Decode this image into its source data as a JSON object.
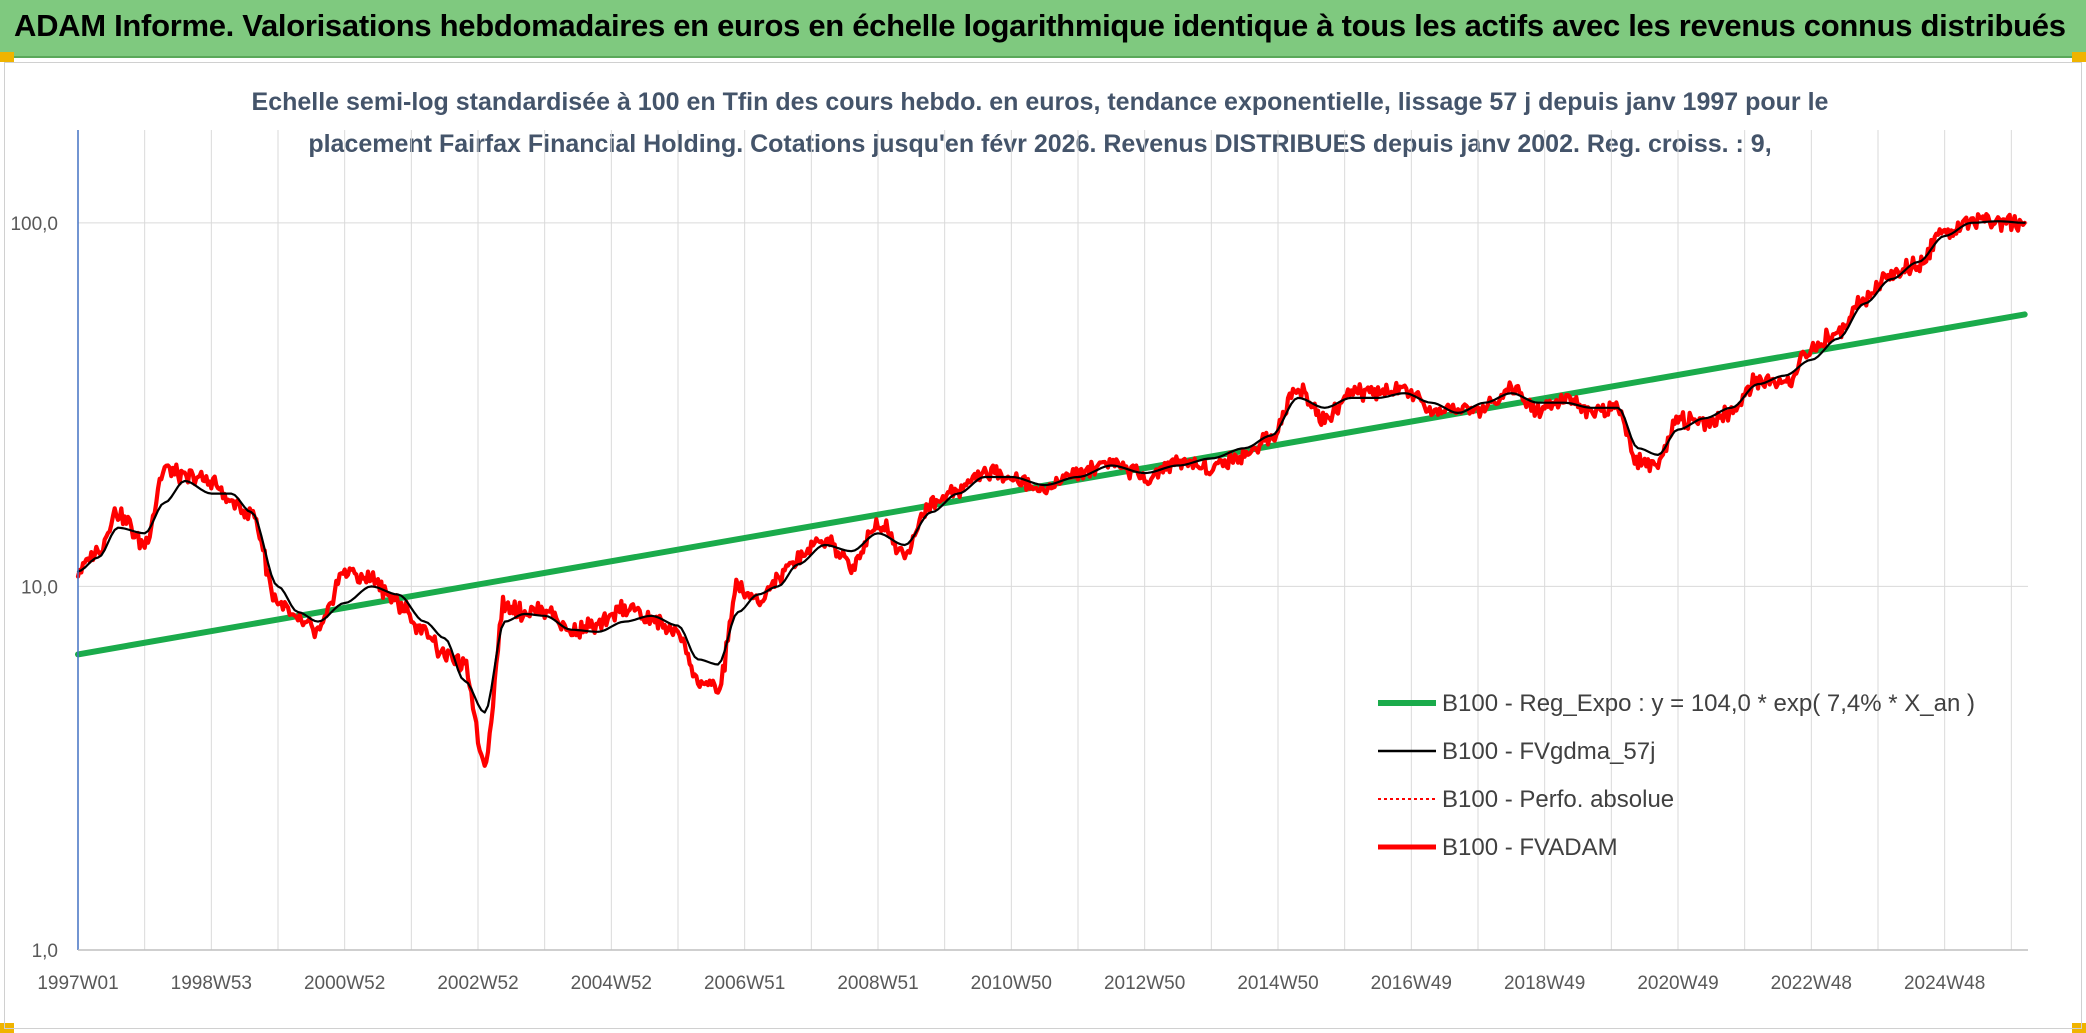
{
  "header": {
    "title": "ADAM Informe. Valorisations hebdomadaires en euros en échelle logarithmique identique à tous les actifs avec les revenus connus distribués"
  },
  "chart_data": {
    "type": "line",
    "title_line1": "Echelle semi-log standardisée à 100 en Tfin des cours hebdo. en euros, tendance exponentielle, lissage 57 j depuis janv 1997 pour le",
    "title_line2": "placement Fairfax Financial Holding. Cotations jusqu'en févr 2026. Revenus DISTRIBUES depuis janv 2002. Reg. croiss. : 9,",
    "y_scale": "log",
    "ylim": [
      1,
      180
    ],
    "xlim": [
      1997.0,
      2026.25
    ],
    "grid": true,
    "legend_position": "bottom-right",
    "y_ticks": [
      {
        "value": 1,
        "label": "1,0"
      },
      {
        "value": 10,
        "label": "10,0"
      },
      {
        "value": 100,
        "label": "100,0"
      }
    ],
    "x_ticks": [
      {
        "value": 1997.0,
        "label": "1997W01"
      },
      {
        "value": 1999.0,
        "label": "1998W53"
      },
      {
        "value": 2001.0,
        "label": "2000W52"
      },
      {
        "value": 2003.0,
        "label": "2002W52"
      },
      {
        "value": 2005.0,
        "label": "2004W52"
      },
      {
        "value": 2007.0,
        "label": "2006W51"
      },
      {
        "value": 2009.0,
        "label": "2008W51"
      },
      {
        "value": 2011.0,
        "label": "2010W50"
      },
      {
        "value": 2013.0,
        "label": "2012W50"
      },
      {
        "value": 2015.0,
        "label": "2014W50"
      },
      {
        "value": 2017.0,
        "label": "2016W49"
      },
      {
        "value": 2019.0,
        "label": "2018W49"
      },
      {
        "value": 2021.0,
        "label": "2020W49"
      },
      {
        "value": 2023.0,
        "label": "2022W48"
      },
      {
        "value": 2025.0,
        "label": "2024W48"
      }
    ],
    "series": [
      {
        "name": "B100 - Reg_Expo : y = 104,0 * exp( 7,4% *  X_an )",
        "color": "#1aab4b",
        "style": "solid-thick",
        "x": [
          1997.0,
          2026.2
        ],
        "y": [
          6.5,
          56
        ]
      },
      {
        "name": "B100 - FVgdma_57j",
        "color": "#000000",
        "style": "solid-thin",
        "x": [
          1997.0,
          1997.3,
          1997.6,
          1998.0,
          1998.3,
          1998.6,
          1999.0,
          1999.3,
          1999.6,
          2000.0,
          2000.3,
          2000.6,
          2001.0,
          2001.4,
          2001.8,
          2002.2,
          2002.5,
          2002.8,
          2003.1,
          2003.4,
          2003.7,
          2004.0,
          2004.4,
          2004.8,
          2005.2,
          2005.6,
          2006.0,
          2006.3,
          2006.6,
          2006.9,
          2007.2,
          2007.5,
          2007.8,
          2008.2,
          2008.6,
          2009.0,
          2009.4,
          2009.8,
          2010.2,
          2010.6,
          2011.0,
          2011.5,
          2012.0,
          2012.5,
          2013.0,
          2013.5,
          2014.0,
          2014.5,
          2014.9,
          2015.3,
          2015.7,
          2016.1,
          2016.5,
          2016.9,
          2017.3,
          2017.7,
          2018.1,
          2018.5,
          2018.9,
          2019.3,
          2019.7,
          2020.1,
          2020.4,
          2020.7,
          2021.0,
          2021.4,
          2021.8,
          2022.2,
          2022.6,
          2023.0,
          2023.4,
          2023.8,
          2024.2,
          2024.6,
          2025.0,
          2025.4,
          2025.8,
          2026.2
        ],
        "y": [
          11,
          12,
          14.5,
          14,
          17,
          19.5,
          18,
          18,
          16,
          10,
          8.5,
          8,
          9,
          10,
          9.5,
          8,
          7.2,
          5.5,
          4.5,
          8,
          8.4,
          8.3,
          7.6,
          7.5,
          8,
          8.3,
          7.8,
          6.3,
          6.1,
          8.5,
          9.5,
          10,
          11.5,
          13,
          12.5,
          14,
          13,
          16,
          18,
          20,
          20,
          19,
          20,
          21.5,
          20.5,
          21.5,
          22.5,
          24,
          26,
          33,
          31,
          33,
          33,
          34,
          32,
          30,
          32,
          34,
          32,
          32,
          31,
          31,
          24,
          23,
          27,
          29,
          31,
          36,
          38,
          42,
          48,
          60,
          70,
          78,
          92,
          100,
          101,
          100
        ]
      },
      {
        "name": "B100 - Perfo. absolue",
        "color": "#ff0000",
        "style": "dotted",
        "x": [
          1997.0,
          1997.3,
          1997.6,
          1998.0,
          1998.3,
          1998.6,
          1999.0,
          1999.3,
          1999.6,
          2000.0,
          2000.3,
          2000.6,
          2001.0,
          2001.4,
          2001.8,
          2002.2,
          2002.5,
          2002.8,
          2003.1,
          2003.4,
          2003.7,
          2004.0,
          2004.4,
          2004.8,
          2005.2,
          2005.6,
          2006.0,
          2006.3,
          2006.6,
          2006.9,
          2007.2,
          2007.5,
          2007.8,
          2008.2,
          2008.6,
          2009.0,
          2009.4,
          2009.8,
          2010.2,
          2010.6,
          2011.0,
          2011.5,
          2012.0,
          2012.5,
          2013.0,
          2013.5,
          2014.0,
          2014.5,
          2014.9,
          2015.3,
          2015.7,
          2016.1,
          2016.5,
          2016.9,
          2017.3,
          2017.7,
          2018.1,
          2018.5,
          2018.9,
          2019.3,
          2019.7,
          2020.1,
          2020.4,
          2020.7,
          2021.0,
          2021.4,
          2021.8,
          2022.2,
          2022.6,
          2023.0,
          2023.4,
          2023.8,
          2024.2,
          2024.6,
          2025.0,
          2025.4,
          2025.8,
          2026.2
        ],
        "y": [
          11,
          12.5,
          16,
          13,
          21,
          20,
          19.5,
          17,
          16,
          9,
          8,
          7.5,
          11,
          10.5,
          9,
          7.5,
          6.5,
          6,
          3.3,
          9,
          8.5,
          8.6,
          7.5,
          7.8,
          8.8,
          8.1,
          7.5,
          5.5,
          5.2,
          10,
          9,
          10.5,
          12,
          13.5,
          11.5,
          15,
          12.5,
          17,
          18.5,
          20.5,
          20,
          18.5,
          20.5,
          22,
          20,
          22,
          21.5,
          23,
          26,
          35,
          29,
          34,
          34,
          35,
          30,
          31,
          31,
          35,
          31,
          33,
          30,
          31,
          22,
          22,
          29,
          28,
          30,
          37,
          36,
          45,
          50,
          62,
          72,
          76,
          95,
          101,
          99,
          100
        ]
      },
      {
        "name": "B100 - FVADAM",
        "color": "#ff0000",
        "style": "solid-thick",
        "x": [
          1997.0,
          1997.3,
          1997.6,
          1998.0,
          1998.3,
          1998.6,
          1999.0,
          1999.3,
          1999.6,
          2000.0,
          2000.3,
          2000.6,
          2001.0,
          2001.4,
          2001.8,
          2002.2,
          2002.5,
          2002.8,
          2003.1,
          2003.4,
          2003.7,
          2004.0,
          2004.4,
          2004.8,
          2005.2,
          2005.6,
          2006.0,
          2006.3,
          2006.6,
          2006.9,
          2007.2,
          2007.5,
          2007.8,
          2008.2,
          2008.6,
          2009.0,
          2009.4,
          2009.8,
          2010.2,
          2010.6,
          2011.0,
          2011.5,
          2012.0,
          2012.5,
          2013.0,
          2013.5,
          2014.0,
          2014.5,
          2014.9,
          2015.3,
          2015.7,
          2016.1,
          2016.5,
          2016.9,
          2017.3,
          2017.7,
          2018.1,
          2018.5,
          2018.9,
          2019.3,
          2019.7,
          2020.1,
          2020.4,
          2020.7,
          2021.0,
          2021.4,
          2021.8,
          2022.2,
          2022.6,
          2023.0,
          2023.4,
          2023.8,
          2024.2,
          2024.6,
          2025.0,
          2025.4,
          2025.8,
          2026.2
        ],
        "y": [
          11,
          12.5,
          16,
          13,
          21,
          20,
          19.5,
          17,
          16,
          9,
          8,
          7.5,
          11,
          10.5,
          9,
          7.5,
          6.5,
          6,
          3.3,
          9,
          8.5,
          8.6,
          7.5,
          7.8,
          8.8,
          8.1,
          7.5,
          5.5,
          5.2,
          10,
          9,
          10.5,
          12,
          13.5,
          11.5,
          15,
          12.5,
          17,
          18.5,
          20.5,
          20,
          18.5,
          20.5,
          22,
          20,
          22,
          21.5,
          23,
          26,
          35,
          29,
          34,
          34,
          35,
          30,
          31,
          31,
          35,
          31,
          33,
          30,
          31,
          22,
          22,
          29,
          28,
          30,
          37,
          36,
          45,
          50,
          62,
          72,
          76,
          95,
          101,
          99,
          100
        ]
      }
    ]
  }
}
